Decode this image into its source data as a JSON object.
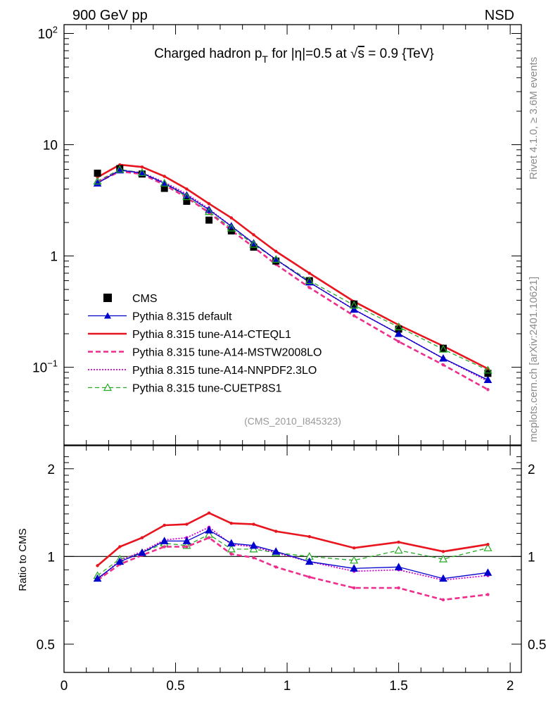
{
  "header": {
    "left_label": "900 GeV pp",
    "right_label": "NSD"
  },
  "side_labels": {
    "rivet": "Rivet 4.1.0, ≥ 3.6M events",
    "mcplots": "mcplots.cern.ch [arXiv:2401.10621]"
  },
  "chart_data": [
    {
      "type": "line",
      "panel": "main",
      "title": "Charged hadron p_T for |η|=0.5 at √s = 0.9 {TeV}",
      "title_parts": {
        "a": "Charged hadron p",
        "sub": "T",
        "b": " for |η|=0.5 at √",
        "c": "s",
        "d": " = 0.9 {TeV}"
      },
      "analysis_tag": "(CMS_2010_I845323)",
      "yscale": "log",
      "xlim": [
        0,
        2.05
      ],
      "ylim": [
        0.02,
        120
      ],
      "x_ticks": [
        0,
        0.5,
        1,
        1.5,
        2
      ],
      "y_tick_labels": {
        "ten_squared": {
          "base": "10",
          "exp": "2"
        },
        "ten": "10",
        "one": "1",
        "ten_minus_one": {
          "base": "10",
          "exp": "−1"
        }
      },
      "x": [
        0.15,
        0.25,
        0.35,
        0.45,
        0.55,
        0.65,
        0.75,
        0.85,
        0.95,
        1.1,
        1.3,
        1.5,
        1.7,
        1.9
      ],
      "series": [
        {
          "name": "CMS",
          "style": "data",
          "color": "#000000",
          "values": [
            5.55,
            6.1,
            5.45,
            4.05,
            3.1,
            2.1,
            1.68,
            1.2,
            0.9,
            0.6,
            0.37,
            0.22,
            0.148,
            0.088
          ]
        },
        {
          "name": "Pythia 8.315 default",
          "style": "solid-triangle",
          "color": "#0000cc",
          "values": [
            4.5,
            5.9,
            5.55,
            4.5,
            3.5,
            2.6,
            1.85,
            1.3,
            0.93,
            0.58,
            0.33,
            0.2,
            0.12,
            0.077
          ]
        },
        {
          "name": "Pythia 8.315 tune-A14-CTEQL1",
          "style": "thick-solid",
          "color": "#e8141e",
          "values": [
            5.1,
            6.6,
            6.3,
            5.2,
            4.0,
            2.95,
            2.2,
            1.55,
            1.1,
            0.7,
            0.39,
            0.24,
            0.155,
            0.097
          ]
        },
        {
          "name": "Pythia 8.315 tune-A14-MSTW2008LO",
          "style": "thick-dash",
          "color": "#ee2d8c",
          "values": [
            4.6,
            5.75,
            5.45,
            4.35,
            3.35,
            2.45,
            1.7,
            1.2,
            0.84,
            0.52,
            0.29,
            0.17,
            0.105,
            0.063
          ]
        },
        {
          "name": "Pythia 8.315 tune-A14-NNPDF2.3LO",
          "style": "dotted",
          "color": "#cc00cc",
          "values": [
            4.6,
            5.9,
            5.6,
            4.6,
            3.6,
            2.65,
            1.85,
            1.3,
            0.93,
            0.58,
            0.33,
            0.2,
            0.12,
            0.075
          ]
        },
        {
          "name": "Pythia 8.315 tune-CUETP8S1",
          "style": "dash-open-triangle",
          "color": "#22aa22",
          "values": [
            4.7,
            6.0,
            5.6,
            4.5,
            3.4,
            2.5,
            1.78,
            1.27,
            0.93,
            0.6,
            0.36,
            0.23,
            0.145,
            0.094
          ]
        }
      ]
    },
    {
      "type": "line",
      "panel": "ratio",
      "ylabel": "Ratio to CMS",
      "xlim": [
        0,
        2.05
      ],
      "ylim": [
        0.4,
        2.4
      ],
      "y_ticks": [
        "0.5",
        "1",
        "2"
      ],
      "x": [
        0.15,
        0.25,
        0.35,
        0.45,
        0.55,
        0.65,
        0.75,
        0.85,
        0.95,
        1.1,
        1.3,
        1.5,
        1.7,
        1.9
      ],
      "series": [
        {
          "name": "Pythia 8.315 default",
          "values": [
            0.84,
            0.96,
            1.03,
            1.13,
            1.13,
            1.23,
            1.11,
            1.09,
            1.04,
            0.96,
            0.91,
            0.92,
            0.84,
            0.88
          ]
        },
        {
          "name": "Pythia 8.315 tune-A14-CTEQL1",
          "values": [
            0.93,
            1.08,
            1.16,
            1.28,
            1.29,
            1.41,
            1.3,
            1.29,
            1.22,
            1.17,
            1.07,
            1.12,
            1.04,
            1.1
          ]
        },
        {
          "name": "Pythia 8.315 tune-A14-MSTW2008LO",
          "values": [
            0.83,
            0.94,
            1.01,
            1.08,
            1.08,
            1.16,
            1.02,
            0.99,
            0.92,
            0.85,
            0.78,
            0.78,
            0.71,
            0.74
          ]
        },
        {
          "name": "Pythia 8.315 tune-A14-NNPDF2.3LO",
          "values": [
            0.83,
            0.97,
            1.04,
            1.14,
            1.16,
            1.26,
            1.1,
            1.08,
            1.03,
            0.96,
            0.89,
            0.9,
            0.83,
            0.86
          ]
        },
        {
          "name": "Pythia 8.315 tune-CUETP8S1",
          "values": [
            0.86,
            0.98,
            1.03,
            1.11,
            1.09,
            1.19,
            1.06,
            1.06,
            1.03,
            1.0,
            0.97,
            1.05,
            0.98,
            1.07
          ]
        }
      ]
    }
  ]
}
